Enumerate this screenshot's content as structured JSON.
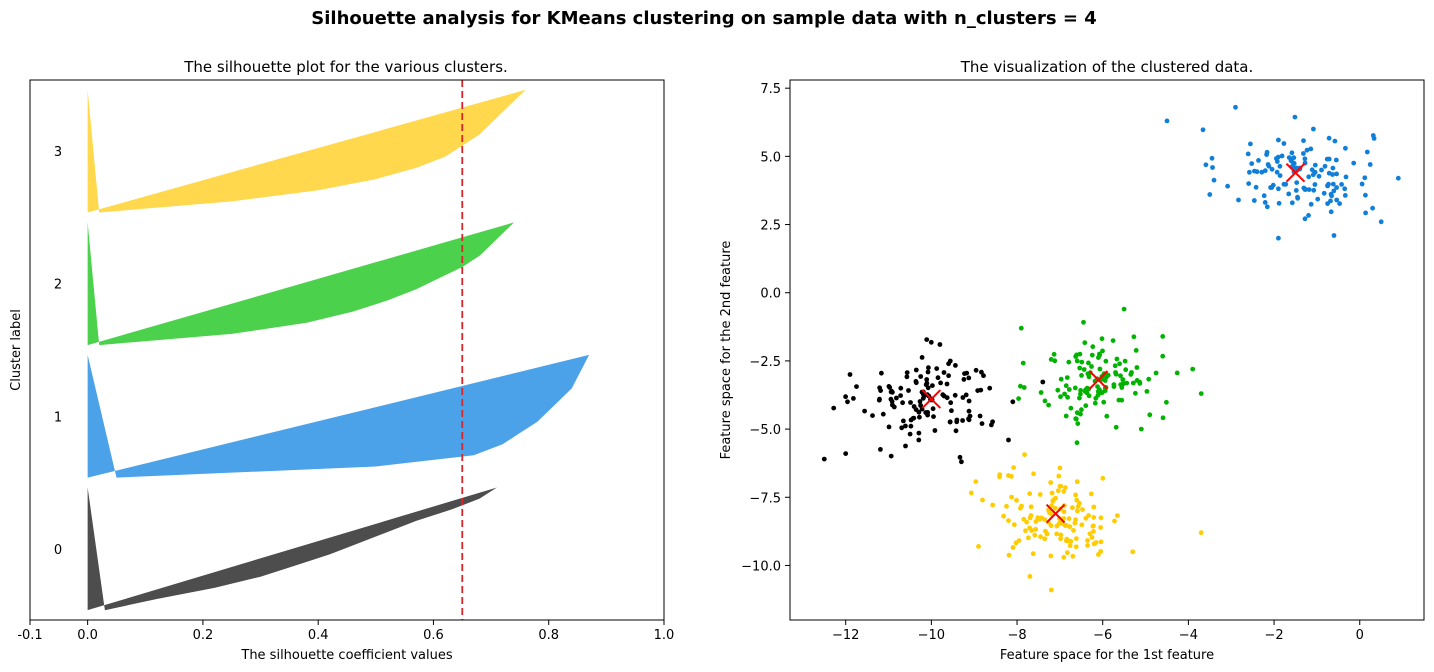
{
  "figure": {
    "title": "Silhouette analysis for KMeans clustering on sample data with n_clusters = 4"
  },
  "chart_data": [
    {
      "type": "area",
      "title": "The silhouette plot for the various clusters.",
      "xlabel": "The silhouette coefficient values",
      "ylabel": "Cluster label",
      "xlim": [
        -0.1,
        1.0
      ],
      "xticks": [
        "-0.1",
        "0.0",
        "0.2",
        "0.4",
        "0.6",
        "0.8",
        "1.0"
      ],
      "xtick_values": [
        -0.1,
        0.0,
        0.2,
        0.4,
        0.6,
        0.8,
        1.0
      ],
      "average_silhouette_score": 0.65,
      "average_line_color": "#d62728",
      "grid": false,
      "clusters": [
        {
          "label": "0",
          "color": "#4d4d4d",
          "size": 125,
          "max": 0.71,
          "min": 0.03,
          "profile": [
            0.71,
            0.68,
            0.63,
            0.57,
            0.52,
            0.47,
            0.42,
            0.36,
            0.3,
            0.22,
            0.12,
            0.03
          ]
        },
        {
          "label": "1",
          "color": "#4ca2e8",
          "size": 125,
          "max": 0.87,
          "min": 0.05,
          "profile": [
            0.87,
            0.86,
            0.85,
            0.84,
            0.82,
            0.8,
            0.78,
            0.75,
            0.72,
            0.67,
            0.5,
            0.05
          ]
        },
        {
          "label": "2",
          "color": "#4cd14d",
          "size": 125,
          "max": 0.74,
          "min": 0.02,
          "profile": [
            0.74,
            0.72,
            0.7,
            0.68,
            0.65,
            0.61,
            0.57,
            0.52,
            0.46,
            0.38,
            0.25,
            0.02
          ]
        },
        {
          "label": "3",
          "color": "#ffd84d",
          "size": 125,
          "max": 0.76,
          "min": 0.02,
          "profile": [
            0.76,
            0.74,
            0.72,
            0.7,
            0.68,
            0.65,
            0.62,
            0.57,
            0.5,
            0.4,
            0.25,
            0.02
          ]
        }
      ]
    },
    {
      "type": "scatter",
      "title": "The visualization of the clustered data.",
      "xlabel": "Feature space for the 1st feature",
      "ylabel": "Feature space for the 2nd feature",
      "xlim": [
        -13.3,
        1.5
      ],
      "ylim": [
        -12.0,
        7.8
      ],
      "xticks": [
        "−12",
        "−10",
        "−8",
        "−6",
        "−4",
        "−2",
        "0"
      ],
      "xtick_values": [
        -12,
        -10,
        -8,
        -6,
        -4,
        -2,
        0
      ],
      "yticks": [
        "−10.0",
        "−7.5",
        "−5.0",
        "−2.5",
        "0.0",
        "2.5",
        "5.0",
        "7.5"
      ],
      "ytick_values": [
        -10.0,
        -7.5,
        -5.0,
        -2.5,
        0.0,
        2.5,
        5.0,
        7.5
      ],
      "grid": false,
      "centroid_color": "#ff0000",
      "series": [
        {
          "color": "#0f7fd9",
          "center": [
            -1.5,
            4.4
          ],
          "spread": [
            1.05,
            0.95
          ],
          "count": 125,
          "extra_points": [
            [
              -4.5,
              6.3
            ],
            [
              0.9,
              4.2
            ],
            [
              -1.9,
              2.0
            ],
            [
              -0.6,
              2.1
            ],
            [
              0.5,
              2.6
            ],
            [
              -2.9,
              6.8
            ],
            [
              -3.5,
              3.6
            ],
            [
              0.3,
              3.1
            ]
          ]
        },
        {
          "color": "#000000",
          "center": [
            -10.0,
            -3.9
          ],
          "spread": [
            0.95,
            0.95
          ],
          "count": 125,
          "extra_points": [
            [
              -12.5,
              -6.1
            ],
            [
              -12.0,
              -5.9
            ],
            [
              -8.2,
              -5.4
            ],
            [
              -9.8,
              -1.9
            ],
            [
              -11.9,
              -3.0
            ],
            [
              -8.1,
              -4.0
            ],
            [
              -9.3,
              -6.2
            ]
          ]
        },
        {
          "color": "#00b300",
          "center": [
            -6.1,
            -3.2
          ],
          "spread": [
            0.85,
            0.95
          ],
          "count": 125,
          "extra_points": [
            [
              -3.9,
              -2.8
            ],
            [
              -5.5,
              -0.6
            ],
            [
              -7.9,
              -1.3
            ],
            [
              -6.6,
              -5.5
            ],
            [
              -5.1,
              -5.0
            ],
            [
              -3.7,
              -3.7
            ],
            [
              -4.6,
              -1.6
            ]
          ]
        },
        {
          "color": "#ffcc00",
          "center": [
            -7.0,
            -8.2
          ],
          "spread": [
            0.9,
            0.95
          ],
          "count": 125,
          "extra_points": [
            [
              -3.7,
              -8.8
            ],
            [
              -8.9,
              -9.3
            ],
            [
              -7.2,
              -10.9
            ],
            [
              -5.3,
              -9.5
            ],
            [
              -7.7,
              -10.4
            ],
            [
              -6.1,
              -9.6
            ],
            [
              -8.2,
              -6.7
            ]
          ]
        }
      ],
      "centroids": [
        [
          -1.5,
          4.4
        ],
        [
          -10.0,
          -3.9
        ],
        [
          -6.1,
          -3.2
        ],
        [
          -7.1,
          -8.1
        ]
      ]
    }
  ]
}
